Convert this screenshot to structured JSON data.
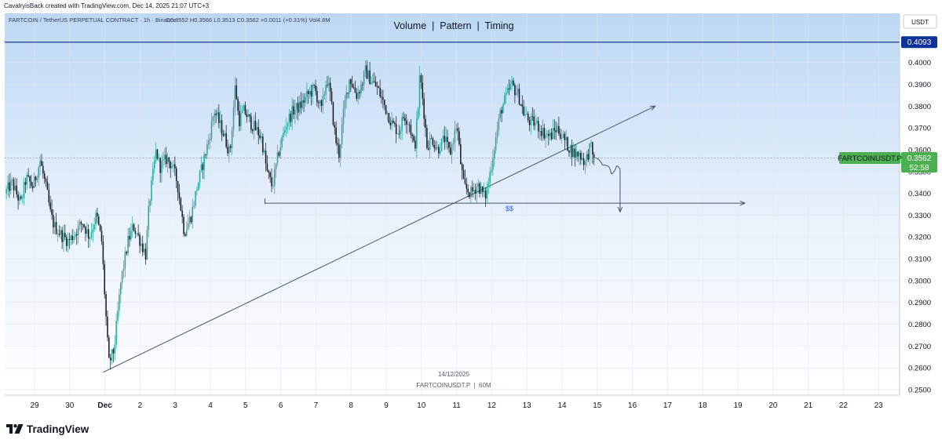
{
  "credit": "CavalryisBack created with TradingView.com, Dec 14, 2025 21:07 UTC+3",
  "brand": "TradingView",
  "symbol_info": "FARTCOIN / TetherUS PERPETUAL CONTRACT · 1h · Binance",
  "ohlc": "O0.3552  H0.3566  L0.3513  C0.3562  +0.0011 (+0.31%)  Vol4.8M",
  "currency": "USDT",
  "colors": {
    "bullish": "#26a69a",
    "bearish": "#131722",
    "resistance": "#1e3a8a",
    "resistance_label_bg": "#0c3299",
    "price_label_bg": "#4caf50",
    "bg_top": "#bcd8f4"
  },
  "chart_data": {
    "type": "candlestick",
    "title": "Volume  |  Pattern  |  Timing",
    "symbol": "FARTCOINUSDT.P",
    "interval": "1h",
    "exchange": "Binance",
    "last_price": 0.3562,
    "countdown": "52:58",
    "resistance_level": 0.4093,
    "support_level": 0.3355,
    "support_label": "$$",
    "watermark_date": "14/12/2025",
    "watermark_symbol": "FARTCOINUSDT.P  |  60M",
    "ylim": [
      0.2475,
      0.4225
    ],
    "y_ticks": [
      0.25,
      0.26,
      0.27,
      0.28,
      0.29,
      0.3,
      0.31,
      0.32,
      0.33,
      0.34,
      0.35,
      0.36,
      0.37,
      0.38,
      0.39,
      0.4
    ],
    "y_tick_labels": [
      "0.2500",
      "0.2600",
      "0.2700",
      "0.2800",
      "0.2900",
      "0.3000",
      "0.3100",
      "0.3200",
      "0.3300",
      "0.3400",
      "0.3500",
      "0.3600",
      "0.3700",
      "0.3800",
      "0.3900",
      "0.4000"
    ],
    "x_ticks": [
      {
        "day": 0,
        "label": "29"
      },
      {
        "day": 1,
        "label": "30"
      },
      {
        "day": 2,
        "label": "Dec"
      },
      {
        "day": 3,
        "label": "2"
      },
      {
        "day": 4,
        "label": "3"
      },
      {
        "day": 5,
        "label": "4"
      },
      {
        "day": 6,
        "label": "5"
      },
      {
        "day": 7,
        "label": "6"
      },
      {
        "day": 8,
        "label": "7"
      },
      {
        "day": 9,
        "label": "8"
      },
      {
        "day": 10,
        "label": "9"
      },
      {
        "day": 11,
        "label": "10"
      },
      {
        "day": 12,
        "label": "11"
      },
      {
        "day": 13,
        "label": "12"
      },
      {
        "day": 14,
        "label": "13"
      },
      {
        "day": 15,
        "label": "14"
      },
      {
        "day": 16,
        "label": "15"
      },
      {
        "day": 17,
        "label": "16"
      },
      {
        "day": 18,
        "label": "17"
      },
      {
        "day": 19,
        "label": "18"
      },
      {
        "day": 20,
        "label": "19"
      },
      {
        "day": 21,
        "label": "20"
      },
      {
        "day": 22,
        "label": "21"
      },
      {
        "day": 23,
        "label": "22"
      },
      {
        "day": 24,
        "label": "23"
      }
    ],
    "x_start_day": -0.8,
    "x_end_day": 24.85,
    "price_path": [
      [
        -0.8,
        0.34
      ],
      [
        -0.6,
        0.345
      ],
      [
        -0.35,
        0.335
      ],
      [
        -0.2,
        0.347
      ],
      [
        0.0,
        0.343
      ],
      [
        0.2,
        0.355
      ],
      [
        0.4,
        0.34
      ],
      [
        0.5,
        0.33
      ],
      [
        0.6,
        0.325
      ],
      [
        0.8,
        0.321
      ],
      [
        1.0,
        0.318
      ],
      [
        1.2,
        0.322
      ],
      [
        1.4,
        0.327
      ],
      [
        1.6,
        0.32
      ],
      [
        1.8,
        0.33
      ],
      [
        1.95,
        0.318
      ],
      [
        2.05,
        0.29
      ],
      [
        2.15,
        0.262
      ],
      [
        2.3,
        0.268
      ],
      [
        2.5,
        0.3
      ],
      [
        2.7,
        0.318
      ],
      [
        2.85,
        0.325
      ],
      [
        3.0,
        0.32
      ],
      [
        3.2,
        0.312
      ],
      [
        3.3,
        0.335
      ],
      [
        3.5,
        0.36
      ],
      [
        3.6,
        0.352
      ],
      [
        3.8,
        0.356
      ],
      [
        3.95,
        0.353
      ],
      [
        4.1,
        0.345
      ],
      [
        4.3,
        0.322
      ],
      [
        4.5,
        0.33
      ],
      [
        4.65,
        0.342
      ],
      [
        4.85,
        0.355
      ],
      [
        5.0,
        0.365
      ],
      [
        5.15,
        0.378
      ],
      [
        5.4,
        0.368
      ],
      [
        5.6,
        0.358
      ],
      [
        5.75,
        0.39
      ],
      [
        5.85,
        0.373
      ],
      [
        6.0,
        0.378
      ],
      [
        6.2,
        0.372
      ],
      [
        6.4,
        0.368
      ],
      [
        6.5,
        0.365
      ],
      [
        6.65,
        0.35
      ],
      [
        6.8,
        0.343
      ],
      [
        7.0,
        0.36
      ],
      [
        7.2,
        0.372
      ],
      [
        7.4,
        0.378
      ],
      [
        7.6,
        0.38
      ],
      [
        7.8,
        0.385
      ],
      [
        8.0,
        0.388
      ],
      [
        8.2,
        0.378
      ],
      [
        8.35,
        0.393
      ],
      [
        8.45,
        0.385
      ],
      [
        8.6,
        0.365
      ],
      [
        8.7,
        0.358
      ],
      [
        8.85,
        0.38
      ],
      [
        9.0,
        0.393
      ],
      [
        9.2,
        0.385
      ],
      [
        9.35,
        0.39
      ],
      [
        9.45,
        0.396
      ],
      [
        9.6,
        0.392
      ],
      [
        9.8,
        0.388
      ],
      [
        10.0,
        0.38
      ],
      [
        10.2,
        0.372
      ],
      [
        10.4,
        0.368
      ],
      [
        10.55,
        0.376
      ],
      [
        10.7,
        0.372
      ],
      [
        10.85,
        0.36
      ],
      [
        10.95,
        0.38
      ],
      [
        11.0,
        0.395
      ],
      [
        11.1,
        0.38
      ],
      [
        11.2,
        0.362
      ],
      [
        11.35,
        0.365
      ],
      [
        11.5,
        0.36
      ],
      [
        11.7,
        0.365
      ],
      [
        11.85,
        0.358
      ],
      [
        11.95,
        0.365
      ],
      [
        12.05,
        0.372
      ],
      [
        12.15,
        0.355
      ],
      [
        12.25,
        0.343
      ],
      [
        12.45,
        0.34
      ],
      [
        12.65,
        0.344
      ],
      [
        12.85,
        0.338
      ],
      [
        12.95,
        0.345
      ],
      [
        13.1,
        0.36
      ],
      [
        13.3,
        0.378
      ],
      [
        13.5,
        0.386
      ],
      [
        13.6,
        0.39
      ],
      [
        13.8,
        0.385
      ],
      [
        13.95,
        0.377
      ],
      [
        14.1,
        0.373
      ],
      [
        14.3,
        0.372
      ],
      [
        14.5,
        0.368
      ],
      [
        14.7,
        0.366
      ],
      [
        14.9,
        0.37
      ],
      [
        15.05,
        0.366
      ],
      [
        15.2,
        0.362
      ],
      [
        15.4,
        0.358
      ],
      [
        15.55,
        0.358
      ],
      [
        15.7,
        0.354
      ],
      [
        15.85,
        0.362
      ],
      [
        15.92,
        0.3562
      ]
    ],
    "drawings": {
      "trendline": {
        "from": [
          1.95,
          0.258
        ],
        "to": [
          17.65,
          0.38
        ]
      },
      "support_line": {
        "from": [
          6.55,
          0.3355
        ],
        "to": [
          20.2,
          0.3355
        ]
      },
      "projection": [
        [
          15.95,
          0.3562
        ],
        [
          16.15,
          0.353
        ],
        [
          16.3,
          0.3525
        ],
        [
          16.4,
          0.349
        ],
        [
          16.55,
          0.3525
        ],
        [
          16.65,
          0.351
        ],
        [
          16.65,
          0.3315
        ]
      ]
    }
  }
}
